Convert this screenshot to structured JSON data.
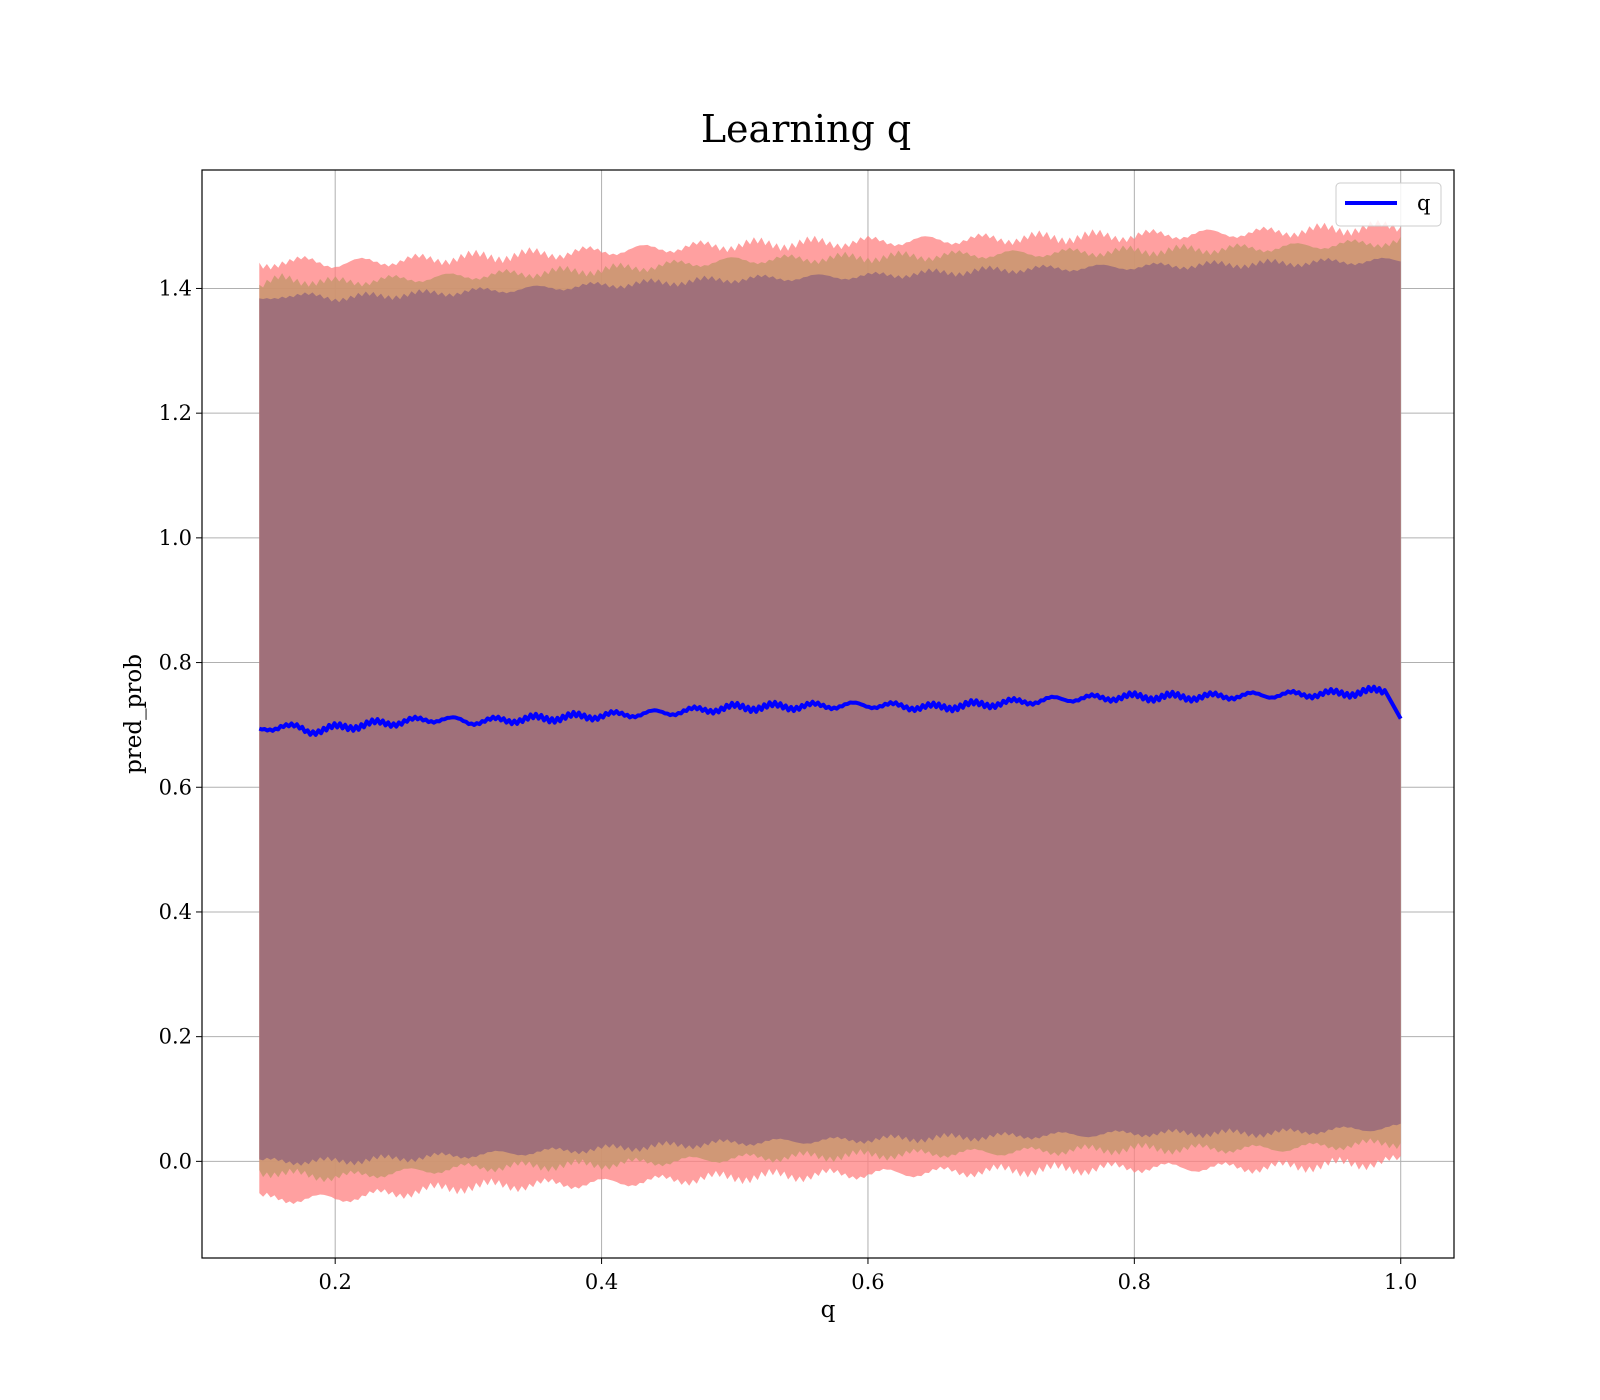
{
  "chart_data": {
    "type": "line",
    "title": "Learning q",
    "xlabel": "q",
    "ylabel": "pred_prob",
    "xlim": [
      0.1,
      1.04
    ],
    "ylim": [
      -0.155,
      1.59
    ],
    "x_ticks": [
      "0.2",
      "0.4",
      "0.6",
      "0.8",
      "1.0"
    ],
    "y_ticks": [
      "0.0",
      "0.2",
      "0.4",
      "0.6",
      "0.8",
      "1.0",
      "1.2",
      "1.4"
    ],
    "grid": true,
    "legend": {
      "position": "top-right",
      "entries": [
        "q"
      ]
    },
    "colors": {
      "line": "#0000ff",
      "band_outer": "#ff8080",
      "band_middle": "#c8966e",
      "band_inner": "#a0707a"
    },
    "series": [
      {
        "name": "q",
        "x": [
          0.143,
          0.16,
          0.18,
          0.2,
          0.22,
          0.25,
          0.28,
          0.3,
          0.35,
          0.4,
          0.45,
          0.5,
          0.55,
          0.6,
          0.65,
          0.7,
          0.75,
          0.8,
          0.85,
          0.9,
          0.95,
          0.99,
          1.0
        ],
        "values": [
          0.69,
          0.7,
          0.69,
          0.695,
          0.7,
          0.705,
          0.71,
          0.705,
          0.71,
          0.715,
          0.72,
          0.728,
          0.73,
          0.732,
          0.728,
          0.735,
          0.742,
          0.745,
          0.745,
          0.748,
          0.75,
          0.755,
          0.71
        ]
      }
    ],
    "bands": [
      {
        "x": [
          0.143,
          0.16,
          0.2,
          0.3,
          0.4,
          0.5,
          0.6,
          0.7,
          0.8,
          0.9,
          1.0
        ],
        "lower": [
          -0.06,
          -0.06,
          -0.06,
          -0.04,
          -0.035,
          -0.025,
          -0.02,
          -0.015,
          -0.01,
          -0.01,
          0.0
        ],
        "upper": [
          1.435,
          1.445,
          1.44,
          1.45,
          1.46,
          1.47,
          1.475,
          1.48,
          1.485,
          1.49,
          1.5
        ]
      },
      {
        "x": [
          0.143,
          0.16,
          0.2,
          0.3,
          0.4,
          0.5,
          0.6,
          0.7,
          0.8,
          0.9,
          1.0
        ],
        "lower": [
          -0.015,
          -0.02,
          -0.025,
          -0.01,
          -0.005,
          0.005,
          0.01,
          0.015,
          0.02,
          0.02,
          0.03
        ],
        "upper": [
          1.405,
          1.415,
          1.41,
          1.42,
          1.43,
          1.445,
          1.45,
          1.455,
          1.46,
          1.465,
          1.475
        ]
      },
      {
        "x": [
          0.143,
          0.16,
          0.2,
          0.3,
          0.4,
          0.5,
          0.6,
          0.7,
          0.8,
          0.9,
          1.0
        ],
        "lower": [
          0.0,
          0.0,
          0.0,
          0.01,
          0.02,
          0.03,
          0.035,
          0.04,
          0.045,
          0.045,
          0.055
        ],
        "upper": [
          1.38,
          1.39,
          1.385,
          1.395,
          1.405,
          1.415,
          1.42,
          1.43,
          1.435,
          1.44,
          1.445
        ]
      }
    ]
  }
}
